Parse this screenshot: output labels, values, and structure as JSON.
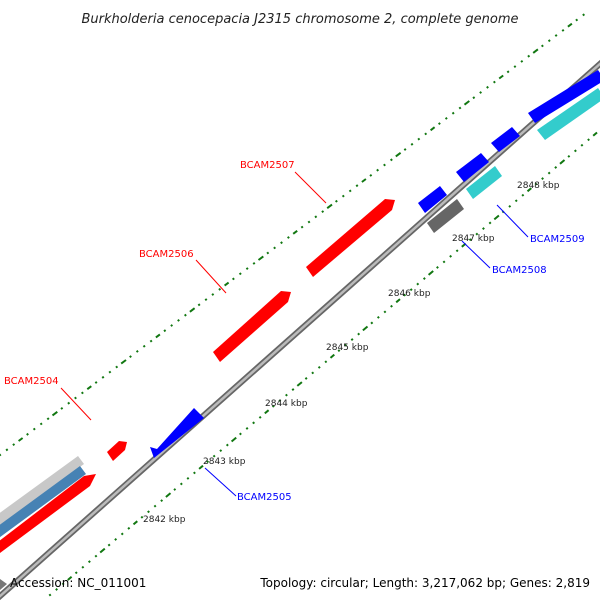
{
  "header": {
    "title": "Burkholderia cenocepacia J2315 chromosome 2, complete genome"
  },
  "footer": {
    "accession": "Accession: NC_011001",
    "summary": "Topology: circular; Length: 3,217,062 bp; Genes: 2,819"
  },
  "colors": {
    "forward_gene": "#ff0000",
    "reverse_gene": "#0000ff",
    "rna_feature": "#33cccc",
    "pseudo_feature": "#666666",
    "backbone": "#888888",
    "gc_ticks": "#117711"
  },
  "scale_ticks": [
    {
      "label": "2842 kbp"
    },
    {
      "label": "2843 kbp"
    },
    {
      "label": "2844 kbp"
    },
    {
      "label": "2845 kbp"
    },
    {
      "label": "2846 kbp"
    },
    {
      "label": "2847 kbp"
    },
    {
      "label": "2848 kbp"
    }
  ],
  "gene_labels": [
    {
      "name": "BCAM2504",
      "strand": "forward"
    },
    {
      "name": "BCAM2505",
      "strand": "reverse"
    },
    {
      "name": "BCAM2506",
      "strand": "forward"
    },
    {
      "name": "BCAM2507",
      "strand": "forward"
    },
    {
      "name": "BCAM2508",
      "strand": "reverse"
    },
    {
      "name": "BCAM2509",
      "strand": "reverse"
    }
  ]
}
